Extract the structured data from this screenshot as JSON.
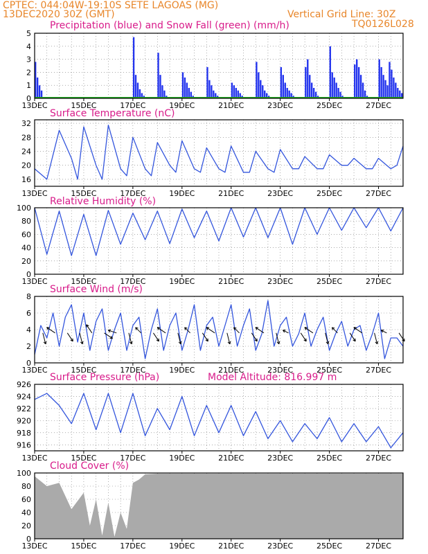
{
  "header": {
    "line1": "CPTEC:  044:04W-19:10S  SETE LAGOAS (MG)",
    "line2": "13DEC2020 30Z (GMT)",
    "grid_note": "Vertical Grid Line: 30Z",
    "code": "TQ0126L028"
  },
  "panels": {
    "precip": {
      "title": "Precipitation (blue) and Snow Fall (green) (mm/h)"
    },
    "temp": {
      "title": "Surface Temperature (nC)"
    },
    "rh": {
      "title": "Relative Humidity (%)"
    },
    "wind": {
      "title": "Surface Wind (m/s)"
    },
    "pres": {
      "title": "Surface Pressure (hPa)",
      "altitude": "Model Altitude: 816.997 m"
    },
    "cloud": {
      "title": "Cloud Cover (%)"
    }
  },
  "colors": {
    "header": "#e8862a",
    "title": "#d81b8a",
    "series": "#3355dd",
    "bars": "#2233ee",
    "snow": "#22aa22",
    "cloud": "#aaaaaa"
  },
  "chart_data": [
    {
      "type": "bar",
      "x_unit": "hours since 13DEC2020",
      "x_ticks": [
        "13DEC",
        "15DEC",
        "17DEC",
        "19DEC",
        "21DEC",
        "23DEC",
        "25DEC",
        "27DEC"
      ],
      "xlim": [
        0,
        360
      ],
      "ylim": [
        0,
        5
      ],
      "yticks": [
        0,
        1,
        2,
        3,
        4,
        5
      ],
      "series": [
        {
          "name": "Precipitation",
          "x": [
            0,
            2,
            4,
            6,
            96,
            98,
            100,
            102,
            104,
            106,
            120,
            122,
            124,
            126,
            128,
            144,
            146,
            148,
            150,
            152,
            154,
            168,
            170,
            172,
            174,
            176,
            178,
            192,
            194,
            196,
            198,
            200,
            202,
            216,
            218,
            220,
            222,
            224,
            226,
            228,
            240,
            242,
            244,
            246,
            248,
            250,
            252,
            264,
            266,
            268,
            270,
            272,
            274,
            276,
            288,
            290,
            292,
            294,
            296,
            298,
            300,
            312,
            314,
            316,
            318,
            320,
            322,
            324,
            336,
            338,
            340,
            342,
            344,
            346,
            348,
            350,
            352,
            354,
            356,
            358
          ],
          "values": [
            2.8,
            1.6,
            1.0,
            0.6,
            4.7,
            1.8,
            1.2,
            0.7,
            0.4,
            0.2,
            3.5,
            1.8,
            1.0,
            0.6,
            0.2,
            2.0,
            1.6,
            1.2,
            0.8,
            0.5,
            0.2,
            2.4,
            1.4,
            1.0,
            0.6,
            0.4,
            0.2,
            1.2,
            1.0,
            0.8,
            0.6,
            0.4,
            0.2,
            2.8,
            2.0,
            1.4,
            1.0,
            0.6,
            0.4,
            0.2,
            2.4,
            1.8,
            1.2,
            0.8,
            0.6,
            0.4,
            0.2,
            2.4,
            3.0,
            1.8,
            1.2,
            0.8,
            0.5,
            0.2,
            4.0,
            2.0,
            1.6,
            1.2,
            0.8,
            0.5,
            0.2,
            2.6,
            3.0,
            2.4,
            1.8,
            1.2,
            0.6,
            0.2,
            3.0,
            2.4,
            1.8,
            1.4,
            1.0,
            2.8,
            2.2,
            1.6,
            1.2,
            0.8,
            0.6,
            0.4
          ]
        },
        {
          "name": "Snow Fall",
          "x": [
            0,
            360
          ],
          "values": [
            0,
            0
          ]
        }
      ]
    },
    {
      "type": "line",
      "x_unit": "hours since 13DEC2020",
      "xlim": [
        0,
        360
      ],
      "ylim": [
        14,
        33
      ],
      "yticks": [
        16,
        20,
        24,
        28,
        32
      ],
      "series": [
        {
          "name": "Surface Temperature",
          "x": [
            0,
            12,
            24,
            36,
            42,
            48,
            60,
            66,
            72,
            84,
            90,
            96,
            108,
            114,
            120,
            132,
            138,
            144,
            156,
            162,
            168,
            180,
            186,
            192,
            204,
            210,
            216,
            228,
            234,
            240,
            252,
            258,
            264,
            276,
            282,
            288,
            300,
            306,
            312,
            324,
            330,
            336,
            348,
            354,
            360
          ],
          "values": [
            19,
            16,
            30,
            22,
            16,
            31,
            20,
            16,
            31.5,
            19,
            17,
            28,
            19,
            17,
            26.5,
            20,
            18,
            27,
            19,
            18,
            25,
            19,
            18,
            25.5,
            18,
            18,
            24,
            19,
            18,
            24.5,
            19,
            19,
            22.5,
            19,
            19,
            23,
            20,
            20,
            22,
            19,
            19,
            22,
            19,
            20,
            25.5
          ]
        }
      ]
    },
    {
      "type": "line",
      "x_unit": "hours since 13DEC2020",
      "xlim": [
        0,
        360
      ],
      "ylim": [
        0,
        100
      ],
      "yticks": [
        0,
        20,
        40,
        60,
        80,
        100
      ],
      "series": [
        {
          "name": "Relative Humidity",
          "x": [
            0,
            12,
            24,
            36,
            48,
            60,
            72,
            84,
            96,
            108,
            120,
            132,
            144,
            156,
            168,
            180,
            192,
            204,
            216,
            228,
            240,
            252,
            264,
            276,
            288,
            300,
            312,
            324,
            336,
            348,
            360
          ],
          "values": [
            100,
            30,
            95,
            28,
            90,
            28,
            96,
            45,
            92,
            52,
            95,
            46,
            98,
            55,
            95,
            50,
            100,
            56,
            100,
            55,
            100,
            45,
            100,
            60,
            100,
            66,
            100,
            70,
            100,
            65,
            100
          ]
        }
      ]
    },
    {
      "type": "line",
      "x_unit": "hours since 13DEC2020",
      "xlim": [
        0,
        360
      ],
      "ylim": [
        0,
        8
      ],
      "yticks": [
        0,
        2,
        4,
        6,
        8
      ],
      "series": [
        {
          "name": "Surface Wind",
          "x": [
            0,
            6,
            12,
            18,
            24,
            30,
            36,
            42,
            48,
            54,
            60,
            66,
            72,
            78,
            84,
            90,
            96,
            102,
            108,
            114,
            120,
            126,
            132,
            138,
            144,
            150,
            156,
            162,
            168,
            174,
            180,
            186,
            192,
            198,
            204,
            210,
            216,
            222,
            228,
            234,
            240,
            246,
            252,
            258,
            264,
            270,
            276,
            282,
            288,
            294,
            300,
            306,
            312,
            318,
            324,
            330,
            336,
            342,
            348,
            354,
            360
          ],
          "values": [
            1,
            4.5,
            3,
            6,
            2,
            5.5,
            7,
            2.5,
            6,
            1.5,
            5,
            6.5,
            1.5,
            4,
            6,
            1.5,
            4.5,
            5.5,
            0.5,
            4,
            6.5,
            1.5,
            4.5,
            6,
            1.5,
            4,
            7,
            1.5,
            4.5,
            5.5,
            2,
            4.5,
            7,
            2,
            4.5,
            6.5,
            1.5,
            3.5,
            7.5,
            2,
            4.5,
            5.5,
            2,
            3.5,
            6,
            2,
            4,
            5.5,
            1.5,
            3.5,
            5,
            2,
            4,
            4.5,
            1.5,
            3.5,
            6,
            0.5,
            3,
            3,
            2
          ]
        },
        {
          "name": "Wind Vectors",
          "x": [
            8,
            20,
            32,
            44,
            56,
            68,
            80,
            92,
            104,
            116,
            128,
            140,
            152,
            164,
            176,
            188,
            200,
            212,
            224,
            236,
            248,
            260,
            272,
            284,
            296,
            308,
            320,
            332,
            344,
            356
          ],
          "u": [
            1,
            -3,
            2,
            1,
            -2,
            3,
            -3,
            1,
            -2,
            2,
            -3,
            1,
            -2,
            2,
            -3,
            1,
            -2,
            2,
            -3,
            1,
            -2,
            2,
            -3,
            1,
            -2,
            2,
            -3,
            1,
            -2,
            2
          ],
          "v": [
            -4,
            2,
            -3,
            -4,
            3,
            -2,
            1,
            -4,
            2,
            -3,
            2,
            -4,
            2,
            -3,
            2,
            -4,
            2,
            -3,
            2,
            -4,
            1,
            -3,
            2,
            -4,
            2,
            -3,
            2,
            -4,
            1,
            -3
          ]
        }
      ]
    },
    {
      "type": "line",
      "x_unit": "hours since 13DEC2020",
      "xlim": [
        0,
        360
      ],
      "ylim": [
        915,
        926
      ],
      "yticks": [
        916,
        918,
        920,
        922,
        924,
        926
      ],
      "series": [
        {
          "name": "Surface Pressure",
          "x": [
            0,
            12,
            24,
            36,
            48,
            60,
            72,
            84,
            96,
            108,
            120,
            132,
            144,
            156,
            168,
            180,
            192,
            204,
            216,
            228,
            240,
            252,
            264,
            276,
            288,
            300,
            312,
            324,
            336,
            348,
            360
          ],
          "values": [
            923.5,
            924.5,
            922.5,
            919.5,
            924.5,
            918.5,
            924.5,
            918,
            924.5,
            917.5,
            922,
            918.5,
            924,
            917.5,
            922.5,
            918,
            922.5,
            917.5,
            921.5,
            917,
            920,
            916.5,
            919.5,
            917,
            920.5,
            916.5,
            919.5,
            916.5,
            919,
            915.5,
            918
          ]
        }
      ]
    },
    {
      "type": "area",
      "x_unit": "hours since 13DEC2020",
      "xlim": [
        0,
        360
      ],
      "ylim": [
        0,
        100
      ],
      "yticks": [
        0,
        20,
        40,
        60,
        80,
        100
      ],
      "series": [
        {
          "name": "Cloud Cover",
          "x": [
            0,
            12,
            24,
            36,
            48,
            54,
            60,
            66,
            72,
            78,
            84,
            90,
            96,
            102,
            108,
            120,
            132,
            144,
            156,
            168,
            180,
            192,
            204,
            216,
            228,
            240,
            252,
            264,
            276,
            288,
            300,
            312,
            324,
            336,
            348,
            360
          ],
          "values": [
            95,
            80,
            85,
            45,
            70,
            20,
            60,
            5,
            55,
            3,
            40,
            15,
            85,
            90,
            98,
            99,
            99,
            99,
            99,
            99,
            99,
            99,
            99,
            99,
            99,
            99,
            99,
            99,
            99,
            99,
            99,
            99,
            99,
            99,
            99,
            99
          ]
        }
      ]
    }
  ]
}
